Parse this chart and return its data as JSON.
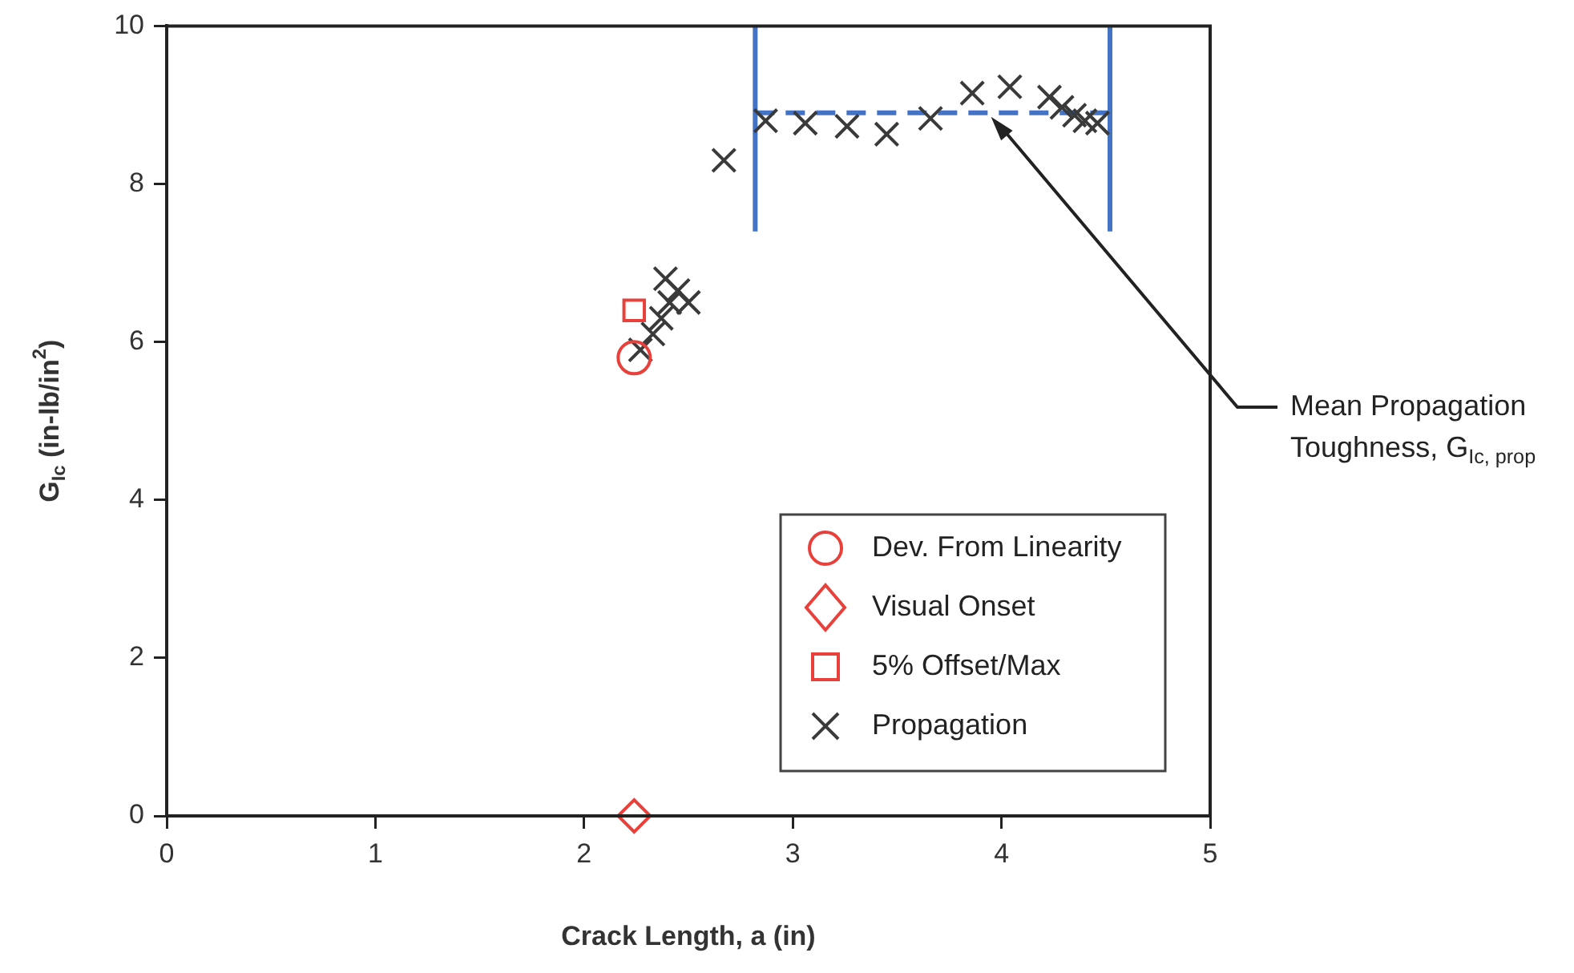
{
  "chart_data": {
    "type": "scatter",
    "xlabel": "Crack Length, a (in)",
    "ylabel": "G$_{Ic}$ (in-lb/in$^{2}$)",
    "xlim": [
      0,
      5
    ],
    "ylim": [
      0,
      10
    ],
    "xticks": [
      0,
      1,
      2,
      3,
      4,
      5
    ],
    "yticks": [
      0,
      2,
      4,
      6,
      8,
      10
    ],
    "grid": false,
    "legend": "bottom right",
    "series": [
      {
        "name": "Dev. From Linearity",
        "marker": "circle",
        "color": "#e8413c",
        "x": [
          2.24
        ],
        "values": [
          5.8
        ]
      },
      {
        "name": "Visual Onset",
        "marker": "diamond",
        "color": "#e8413c",
        "x": [
          2.24
        ],
        "values": [
          0
        ]
      },
      {
        "name": "5% Offset/Max",
        "marker": "square",
        "color": "#e8413c",
        "x": [
          2.24
        ],
        "values": [
          6.4
        ]
      },
      {
        "name": "Propagation",
        "marker": "cross",
        "color": "#3a3a3a",
        "x": [
          2.27,
          2.33,
          2.37,
          2.41,
          2.39,
          2.45,
          2.5,
          2.67,
          2.87,
          3.06,
          3.26,
          3.45,
          3.66,
          3.86,
          4.04,
          4.23,
          4.29,
          4.35,
          4.4,
          4.46
        ],
        "values": [
          5.9,
          6.1,
          6.3,
          6.5,
          6.8,
          6.65,
          6.5,
          8.3,
          8.8,
          8.77,
          8.73,
          8.63,
          8.83,
          9.15,
          9.23,
          9.1,
          8.97,
          8.87,
          8.8,
          8.77
        ]
      },
      {
        "type": "line",
        "marker": "none",
        "line_style": "solid",
        "color": "#4472c4",
        "x": [
          2.82,
          2.82
        ],
        "values": [
          7.4,
          10
        ]
      },
      {
        "type": "line",
        "marker": "none",
        "line_style": "solid",
        "color": "#4472c4",
        "x": [
          4.52,
          4.52
        ],
        "values": [
          7.4,
          10
        ]
      },
      {
        "type": "line",
        "marker": "none",
        "line_style": "dashed",
        "color": "#4472c4",
        "x": [
          2.82,
          4.52
        ],
        "values": [
          8.9,
          8.9
        ]
      }
    ],
    "annotations": [
      {
        "text": "Mean Propagation Toughness, G$_{Ic, prop}$",
        "x": 3.95,
        "y": 8.85
      }
    ]
  }
}
